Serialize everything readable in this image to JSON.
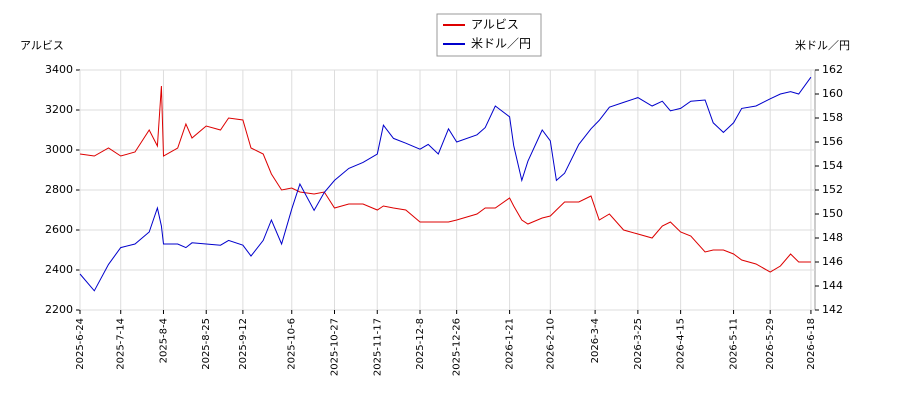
{
  "chart_data": {
    "type": "line",
    "y_label": "アルビス",
    "y2_label": "米ドル／円",
    "x": [
      "2025-6-24",
      "2025-7-1",
      "2025-7-8",
      "2025-7-14",
      "2025-7-21",
      "2025-7-28",
      "2025-8-1",
      "2025-8-3",
      "2025-8-4",
      "2025-8-11",
      "2025-8-15",
      "2025-8-18",
      "2025-8-25",
      "2025-9-1",
      "2025-9-5",
      "2025-9-12",
      "2025-9-16",
      "2025-9-22",
      "2025-9-26",
      "2025-10-1",
      "2025-10-6",
      "2025-10-10",
      "2025-10-17",
      "2025-10-22",
      "2025-10-27",
      "2025-11-3",
      "2025-11-10",
      "2025-11-17",
      "2025-11-20",
      "2025-11-25",
      "2025-12-1",
      "2025-12-8",
      "2025-12-12",
      "2025-12-17",
      "2025-12-22",
      "2025-12-26",
      "2026-1-5",
      "2026-1-9",
      "2026-1-14",
      "2026-1-21",
      "2026-1-23",
      "2026-1-27",
      "2026-1-30",
      "2026-2-6",
      "2026-2-10",
      "2026-2-13",
      "2026-2-17",
      "2026-2-24",
      "2026-3-2",
      "2026-3-6",
      "2026-3-11",
      "2026-3-18",
      "2026-3-25",
      "2026-4-1",
      "2026-4-6",
      "2026-4-10",
      "2026-4-15",
      "2026-4-20",
      "2026-4-27",
      "2026-5-1",
      "2026-5-6",
      "2026-5-11",
      "2026-5-15",
      "2026-5-22",
      "2026-5-29",
      "2026-6-3",
      "2026-6-8",
      "2026-6-12",
      "2026-6-18"
    ],
    "series": [
      {
        "name": "アルビス",
        "color": "#dd0000",
        "axis": "y",
        "values": [
          2980,
          2970,
          3010,
          2970,
          2990,
          3100,
          3020,
          3320,
          2970,
          3010,
          3130,
          3060,
          3120,
          3100,
          3160,
          3150,
          3010,
          2980,
          2880,
          2800,
          2810,
          2790,
          2780,
          2790,
          2710,
          2730,
          2730,
          2700,
          2720,
          2710,
          2700,
          2640,
          2640,
          2640,
          2640,
          2650,
          2680,
          2710,
          2710,
          2760,
          2720,
          2650,
          2630,
          2660,
          2670,
          2700,
          2740,
          2740,
          2770,
          2650,
          2680,
          2600,
          2580,
          2560,
          2620,
          2640,
          2590,
          2570,
          2490,
          2500,
          2500,
          2480,
          2450,
          2430,
          2390,
          2420,
          2480,
          2440,
          2440
        ]
      },
      {
        "name": "米ドル／円",
        "color": "#0000cc",
        "axis": "y2",
        "values": [
          145.0,
          143.6,
          145.8,
          147.2,
          147.5,
          148.5,
          150.5,
          149.0,
          147.5,
          147.5,
          147.2,
          147.6,
          147.5,
          147.4,
          147.8,
          147.4,
          146.5,
          147.8,
          149.5,
          147.5,
          150.4,
          152.5,
          150.3,
          151.8,
          152.8,
          153.8,
          154.3,
          155.0,
          157.4,
          156.3,
          155.9,
          155.4,
          155.8,
          155.0,
          157.1,
          156.0,
          156.6,
          157.2,
          159.0,
          158.1,
          155.7,
          152.8,
          154.4,
          157.0,
          156.1,
          152.8,
          153.4,
          155.8,
          157.1,
          157.8,
          158.9,
          159.3,
          159.7,
          159.0,
          159.4,
          158.6,
          158.8,
          159.4,
          159.5,
          157.6,
          156.8,
          157.6,
          158.8,
          159.0,
          159.6,
          160.0,
          160.2,
          160.0,
          161.4
        ]
      }
    ],
    "xlim": [
      "2025-6-24",
      "2026-6-20"
    ],
    "xticks": [
      "2025-6-24",
      "2025-7-14",
      "2025-8-4",
      "2025-8-25",
      "2025-9-12",
      "2025-10-6",
      "2025-10-27",
      "2025-11-17",
      "2025-12-8",
      "2025-12-26",
      "2026-1-21",
      "2026-2-10",
      "2026-3-4",
      "2026-3-25",
      "2026-4-15",
      "2026-5-11",
      "2026-5-29",
      "2026-6-18"
    ],
    "ylim": [
      2200,
      3400
    ],
    "yticks": [
      2200,
      2400,
      2600,
      2800,
      3000,
      3200,
      3400
    ],
    "y2lim": [
      142,
      162
    ],
    "y2ticks": [
      142,
      144,
      146,
      148,
      150,
      152,
      154,
      156,
      158,
      160,
      162
    ],
    "grid": true
  }
}
